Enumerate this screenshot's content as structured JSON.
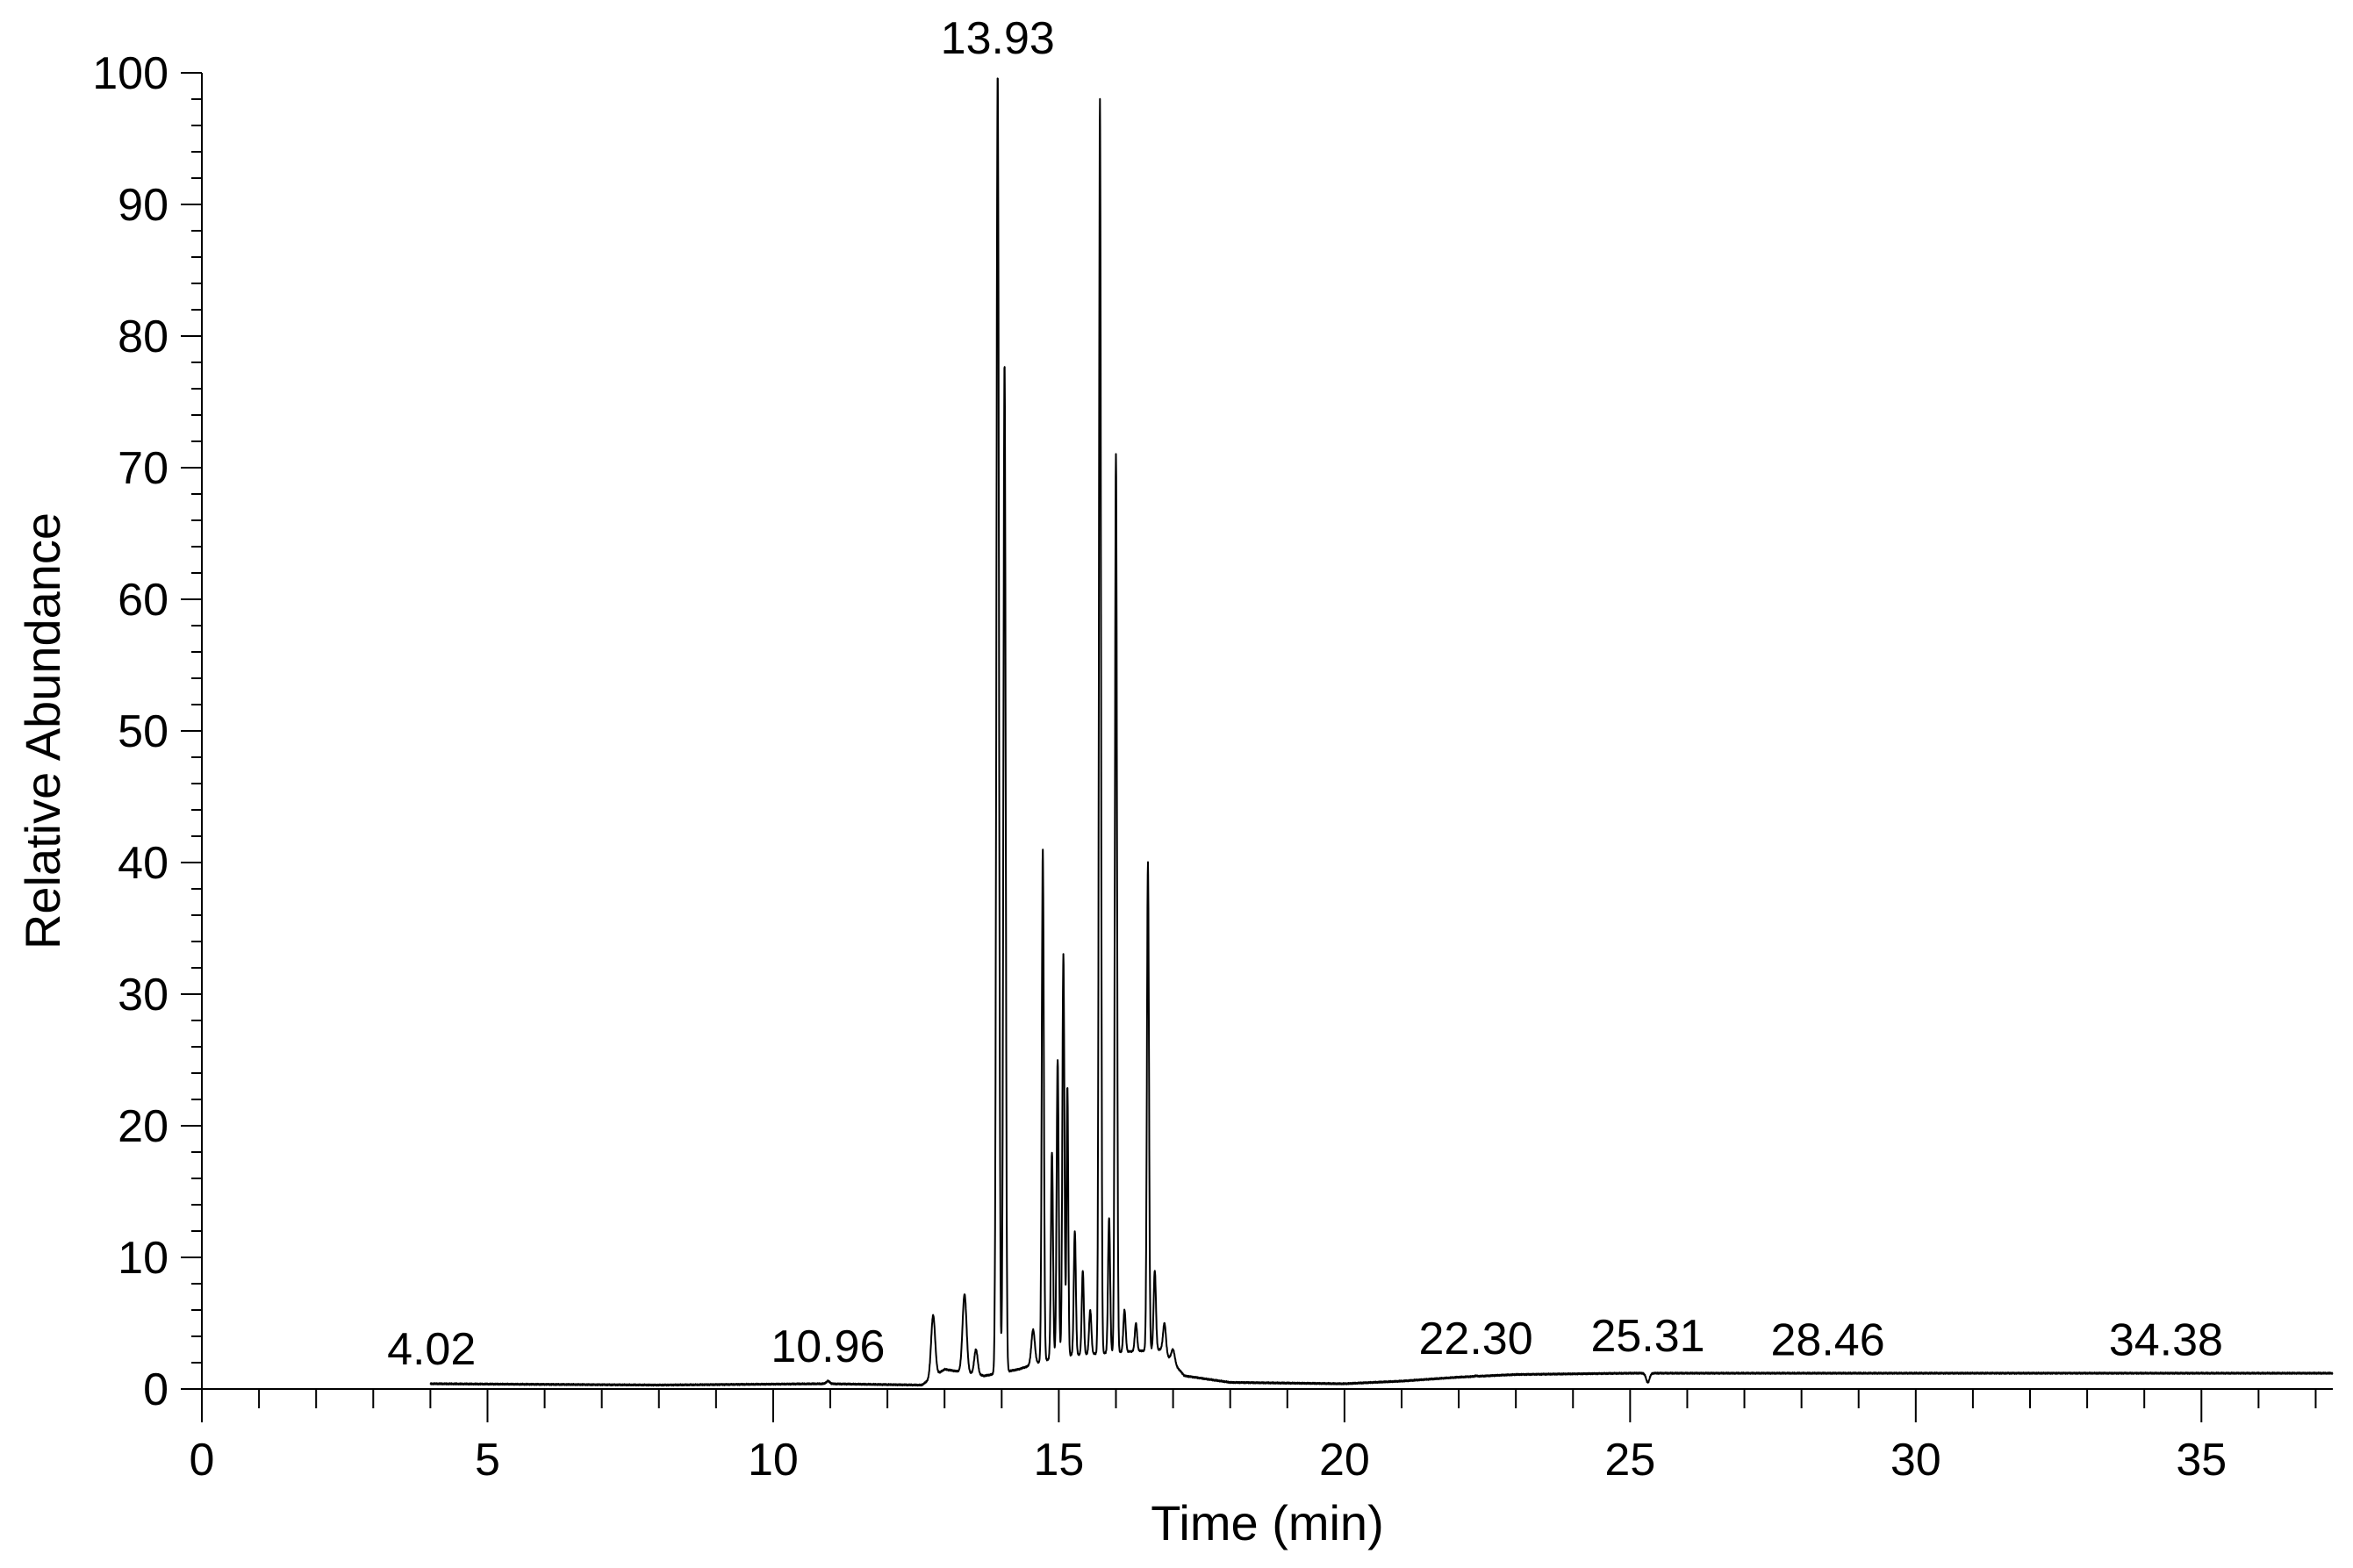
{
  "chart_data": {
    "type": "line",
    "title": "",
    "xlabel": "Time (min)",
    "ylabel": "Relative Abundance",
    "xlim": [
      0,
      37.3
    ],
    "ylim": [
      0,
      100
    ],
    "grid": false,
    "x_ticks": [
      0,
      5,
      10,
      15,
      20,
      25,
      30,
      35
    ],
    "y_ticks": [
      0,
      10,
      20,
      30,
      40,
      50,
      60,
      70,
      80,
      90,
      100
    ],
    "x_minor_step": 1,
    "y_minor_step": 2,
    "peak_labels": [
      {
        "text": "4.02",
        "x": 4.02,
        "y": 0.4
      },
      {
        "text": "10.96",
        "x": 10.96,
        "y": 0.6
      },
      {
        "text": "13.93",
        "x": 13.93,
        "y": 100
      },
      {
        "text": "22.30",
        "x": 22.3,
        "y": 1.2
      },
      {
        "text": "25.31",
        "x": 25.31,
        "y": 1.4
      },
      {
        "text": "28.46",
        "x": 28.46,
        "y": 1.1
      },
      {
        "text": "34.38",
        "x": 34.38,
        "y": 1.1
      }
    ],
    "series": [
      {
        "baseline": [
          [
            4.0,
            0.4
          ],
          [
            8.0,
            0.3
          ],
          [
            10.9,
            0.4
          ],
          [
            12.6,
            0.3
          ],
          [
            13.0,
            1.5
          ],
          [
            13.7,
            1.0
          ],
          [
            14.3,
            1.5
          ],
          [
            15.0,
            2.5
          ],
          [
            16.8,
            3.0
          ],
          [
            17.2,
            1.0
          ],
          [
            18.0,
            0.5
          ],
          [
            20.0,
            0.4
          ],
          [
            21.0,
            0.6
          ],
          [
            22.0,
            0.9
          ],
          [
            23.0,
            1.1
          ],
          [
            25.0,
            1.2
          ],
          [
            30.0,
            1.2
          ],
          [
            37.3,
            1.2
          ]
        ],
        "peaks": [
          {
            "x": 10.96,
            "y": 0.6,
            "w": 0.03
          },
          {
            "x": 12.8,
            "y": 5.6,
            "w": 0.035
          },
          {
            "x": 13.35,
            "y": 7.2,
            "w": 0.035
          },
          {
            "x": 13.55,
            "y": 3.0,
            "w": 0.03
          },
          {
            "x": 13.93,
            "y": 100,
            "w": 0.022
          },
          {
            "x": 14.05,
            "y": 78,
            "w": 0.02
          },
          {
            "x": 14.55,
            "y": 4.5,
            "w": 0.03
          },
          {
            "x": 14.72,
            "y": 41,
            "w": 0.018
          },
          {
            "x": 14.88,
            "y": 18,
            "w": 0.018
          },
          {
            "x": 14.98,
            "y": 25,
            "w": 0.018
          },
          {
            "x": 15.08,
            "y": 33,
            "w": 0.018
          },
          {
            "x": 15.15,
            "y": 23,
            "w": 0.015
          },
          {
            "x": 15.28,
            "y": 12,
            "w": 0.018
          },
          {
            "x": 15.42,
            "y": 9,
            "w": 0.018
          },
          {
            "x": 15.55,
            "y": 6,
            "w": 0.02
          },
          {
            "x": 15.72,
            "y": 98,
            "w": 0.018
          },
          {
            "x": 15.88,
            "y": 13,
            "w": 0.018
          },
          {
            "x": 16.0,
            "y": 71,
            "w": 0.018
          },
          {
            "x": 16.15,
            "y": 6,
            "w": 0.02
          },
          {
            "x": 16.35,
            "y": 5,
            "w": 0.02
          },
          {
            "x": 16.56,
            "y": 40,
            "w": 0.018
          },
          {
            "x": 16.68,
            "y": 9,
            "w": 0.02
          },
          {
            "x": 16.85,
            "y": 5,
            "w": 0.025
          },
          {
            "x": 17.0,
            "y": 3,
            "w": 0.03
          },
          {
            "x": 22.3,
            "y": 1.0,
            "w": 0.02
          },
          {
            "x": 25.31,
            "y": 0.5,
            "w": 0.03
          }
        ]
      }
    ]
  }
}
